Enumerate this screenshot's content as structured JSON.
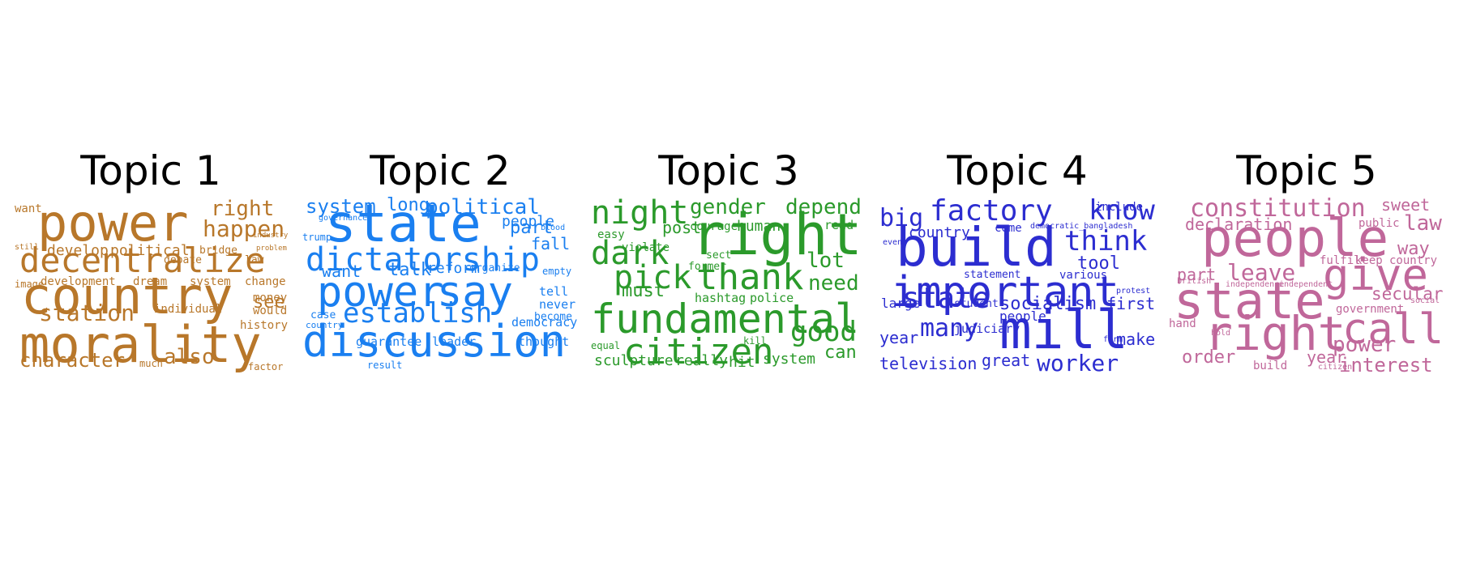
{
  "figure": {
    "topics": [
      {
        "title": "Topic 1",
        "color": "#b8772a",
        "words": [
          "power",
          "country",
          "morality",
          "decentralize",
          "station",
          "character",
          "also",
          "right",
          "happen",
          "develop",
          "political",
          "see",
          "history",
          "development",
          "dream",
          "system",
          "change",
          "money",
          "would",
          "individual",
          "law",
          "problem",
          "bridge",
          "debate",
          "industry",
          "want",
          "still",
          "image",
          "much",
          "factor"
        ]
      },
      {
        "title": "Topic 2",
        "color": "#1a7ff0",
        "words": [
          "state",
          "dictatorship",
          "power",
          "say",
          "discussion",
          "establish",
          "system",
          "long",
          "political",
          "part",
          "people",
          "blood",
          "governance",
          "trump",
          "fall",
          "want",
          "talk",
          "reform",
          "organize",
          "empty",
          "tell",
          "never",
          "case",
          "country",
          "become",
          "democracy",
          "guarantee",
          "leader",
          "thought",
          "result"
        ]
      },
      {
        "title": "Topic 3",
        "color": "#2b9a2b",
        "words": [
          "right",
          "fundamental",
          "citizen",
          "night",
          "dark",
          "pick",
          "thank",
          "good",
          "gender",
          "depend",
          "post",
          "courage",
          "human",
          "read",
          "easy",
          "violate",
          "sect",
          "former",
          "lot",
          "need",
          "must",
          "hashtag",
          "police",
          "equal",
          "kill",
          "sculpture",
          "really",
          "hit",
          "system",
          "can"
        ]
      },
      {
        "title": "Topic 4",
        "color": "#2c2dd0",
        "words": [
          "build",
          "important",
          "mill",
          "factory",
          "state",
          "many",
          "big",
          "know",
          "think",
          "include",
          "country",
          "come",
          "democratic_bangladesh",
          "even",
          "tool",
          "statement",
          "various",
          "protest",
          "large",
          "student",
          "socialism",
          "first",
          "people",
          "judiciary",
          "year",
          "form",
          "make",
          "television",
          "great",
          "worker"
        ]
      },
      {
        "title": "Topic 5",
        "color": "#c0679a",
        "words": [
          "people",
          "state",
          "right",
          "give",
          "call",
          "constitution",
          "declaration",
          "sweet",
          "public",
          "law",
          "way",
          "part",
          "leave",
          "fulfil",
          "keep",
          "country",
          "british",
          "independence",
          "independent",
          "secular",
          "government",
          "hand",
          "hold",
          "social",
          "order",
          "build",
          "year",
          "power",
          "interest",
          "citizen"
        ]
      }
    ]
  }
}
